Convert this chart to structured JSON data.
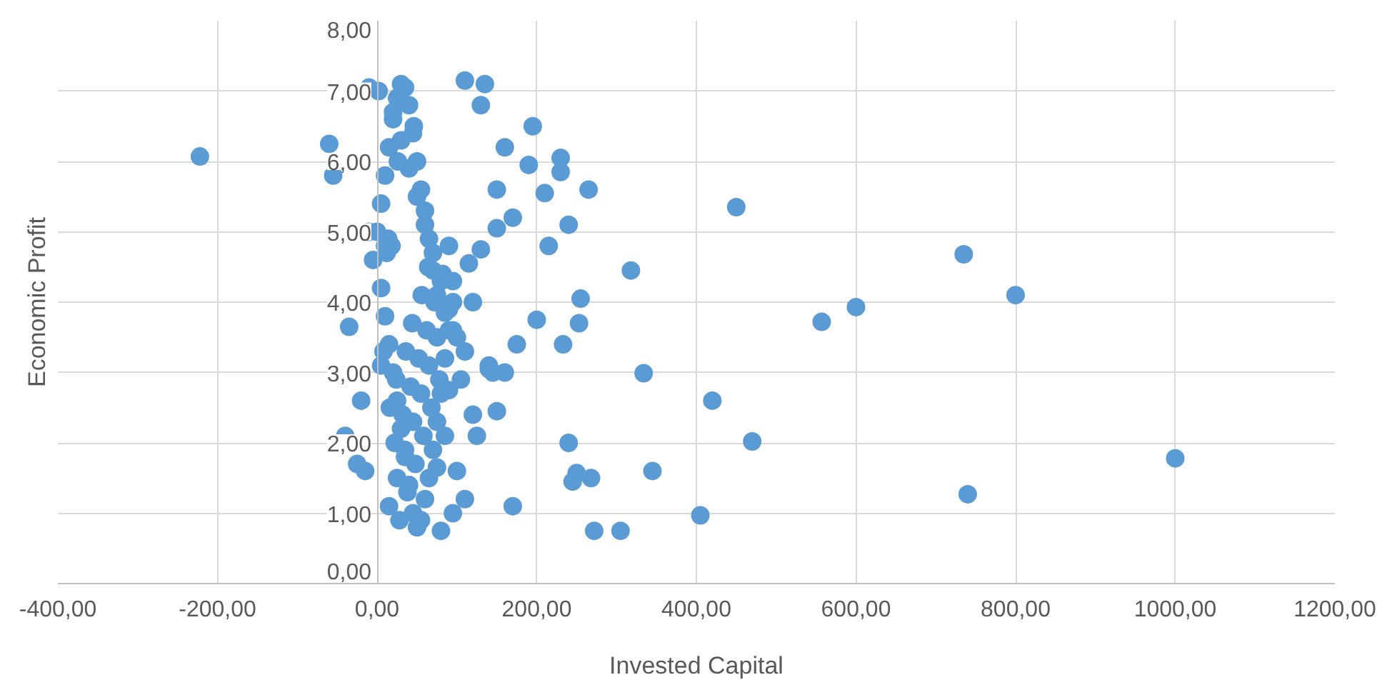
{
  "chart_data": {
    "type": "scatter",
    "xlabel": "Invested Capital",
    "ylabel": "Economic Profit",
    "xlim": [
      -400,
      1200
    ],
    "ylim": [
      0,
      8
    ],
    "xticks": [
      {
        "value": -400,
        "label": "-400,00"
      },
      {
        "value": -200,
        "label": "-200,00"
      },
      {
        "value": 0,
        "label": "0,00"
      },
      {
        "value": 200,
        "label": "200,00"
      },
      {
        "value": 400,
        "label": "400,00"
      },
      {
        "value": 600,
        "label": "600,00"
      },
      {
        "value": 800,
        "label": "800,00"
      },
      {
        "value": 1000,
        "label": "1000,00"
      },
      {
        "value": 1200,
        "label": "1200,00"
      }
    ],
    "yticks": [
      {
        "value": 0,
        "label": "0,00"
      },
      {
        "value": 1,
        "label": "1,00"
      },
      {
        "value": 2,
        "label": "2,00"
      },
      {
        "value": 3,
        "label": "3,00"
      },
      {
        "value": 4,
        "label": "4,00"
      },
      {
        "value": 5,
        "label": "5,00"
      },
      {
        "value": 6,
        "label": "6,00"
      },
      {
        "value": 7,
        "label": "7,00"
      },
      {
        "value": 8,
        "label": "8,00"
      }
    ],
    "grid": true,
    "marker": "circle",
    "series": [
      {
        "color": "#5b9bd5",
        "x": [
          -222,
          -60,
          -55,
          -10,
          -35,
          -40,
          -25,
          -15,
          -20,
          -10,
          318,
          334,
          420,
          470,
          405,
          450,
          557,
          600,
          735,
          800,
          1000,
          740,
          345,
          305,
          272,
          240,
          245,
          250,
          268,
          255,
          253,
          233,
          200,
          175,
          160,
          265,
          230,
          230,
          240,
          210,
          215,
          195,
          170,
          160,
          150,
          150,
          135,
          110,
          130,
          190,
          120,
          140,
          145,
          125,
          110,
          95,
          100,
          105,
          90,
          85,
          80,
          75,
          120,
          130,
          115,
          90,
          170,
          150,
          140,
          110,
          95,
          85,
          75,
          70,
          65,
          60,
          55,
          50,
          45,
          40,
          35,
          30,
          25,
          20,
          15,
          10,
          5,
          0,
          -5,
          5,
          10,
          15,
          20,
          25,
          30,
          35,
          40,
          45,
          50,
          55,
          60,
          65,
          70,
          75,
          80,
          85,
          90,
          95,
          10,
          20,
          30,
          40,
          50,
          60,
          70,
          80,
          90,
          100,
          5,
          15,
          25,
          35,
          45,
          55,
          65,
          75,
          95,
          12,
          22,
          32,
          42,
          52,
          62,
          72,
          82,
          18,
          28,
          38,
          48,
          58,
          68,
          78,
          8,
          16,
          24,
          36,
          44,
          56,
          64,
          14,
          26,
          46,
          2
        ],
        "values": [
          6.07,
          6.25,
          5.8,
          5.0,
          3.65,
          2.1,
          1.7,
          1.6,
          2.6,
          7.05,
          4.45,
          2.99,
          2.6,
          2.02,
          0.97,
          5.35,
          3.72,
          3.93,
          4.68,
          4.1,
          1.78,
          1.27,
          1.6,
          0.75,
          0.75,
          2.0,
          1.45,
          1.57,
          1.5,
          4.05,
          3.7,
          3.4,
          3.75,
          3.4,
          3.0,
          5.6,
          5.85,
          6.05,
          5.1,
          5.55,
          4.8,
          6.5,
          5.2,
          6.2,
          5.6,
          5.05,
          7.1,
          7.15,
          6.8,
          5.95,
          2.4,
          3.1,
          3.0,
          2.1,
          1.2,
          1.0,
          1.6,
          2.9,
          2.75,
          2.1,
          0.75,
          1.65,
          4.0,
          4.75,
          4.55,
          4.8,
          1.1,
          2.45,
          3.05,
          3.3,
          3.6,
          3.85,
          4.1,
          4.45,
          4.9,
          5.3,
          5.6,
          6.0,
          6.4,
          6.8,
          7.05,
          7.1,
          6.9,
          6.6,
          6.2,
          5.8,
          5.4,
          5.0,
          4.6,
          4.2,
          3.8,
          3.4,
          3.0,
          2.6,
          2.2,
          1.8,
          1.4,
          1.0,
          0.8,
          0.9,
          1.2,
          1.5,
          1.9,
          2.3,
          2.7,
          3.2,
          3.6,
          4.0,
          4.8,
          6.7,
          6.3,
          5.9,
          5.5,
          5.1,
          4.7,
          4.3,
          3.9,
          3.5,
          3.1,
          1.1,
          1.5,
          1.9,
          2.3,
          2.7,
          3.1,
          3.5,
          4.3,
          4.7,
          2.0,
          2.4,
          2.8,
          3.2,
          3.6,
          4.0,
          4.4,
          4.8,
          0.9,
          1.3,
          1.7,
          2.1,
          2.5,
          2.9,
          3.3,
          2.5,
          2.9,
          3.3,
          3.7,
          4.1,
          4.5,
          4.9,
          6.0,
          6.5,
          7.0
        ]
      }
    ]
  }
}
